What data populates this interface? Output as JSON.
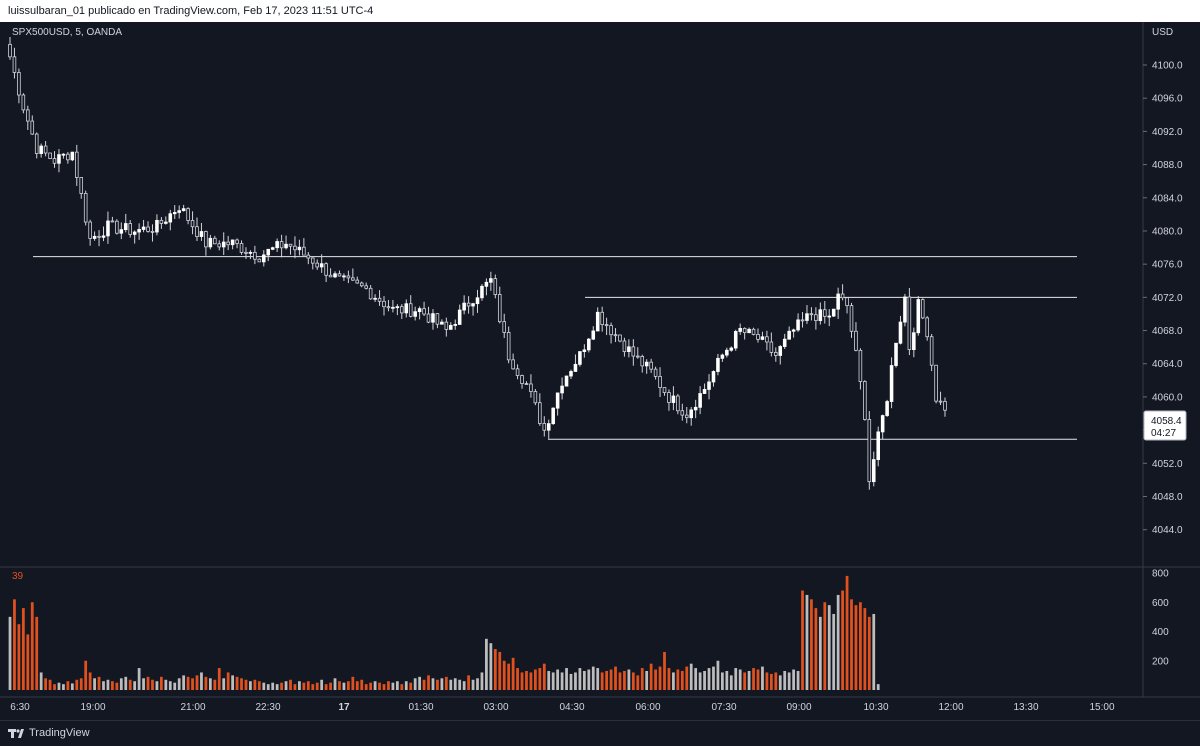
{
  "header": {
    "text": "luissulbaran_01 publicado en TradingView.com, Feb 17, 2023 11:51 UTC-4"
  },
  "legend": {
    "symbol": "SPX500USD, 5, OANDA"
  },
  "currency_label": "USD",
  "volume_label": "39",
  "price_tag": {
    "price": "4058.4",
    "countdown": "04:27"
  },
  "footer": {
    "brand": "TradingView"
  },
  "colors": {
    "background": "#131722",
    "up": "#bdbdbd",
    "down": "#e0511e",
    "line": "#d1d4dc"
  },
  "chart_data": {
    "type": "candlestick",
    "symbol": "SPX500USD",
    "interval": "5",
    "source": "OANDA",
    "price_axis": {
      "ticks": [
        4100.0,
        4096.0,
        4092.0,
        4088.0,
        4084.0,
        4080.0,
        4076.0,
        4072.0,
        4068.0,
        4064.0,
        4060.0,
        4056.0,
        4052.0,
        4048.0,
        4044.0
      ],
      "range": [
        4041.0,
        4104.0
      ]
    },
    "time_axis": {
      "ticks": [
        "6:30",
        "19:00",
        "21:00",
        "22:30",
        "17",
        "01:30",
        "03:00",
        "04:30",
        "06:00",
        "07:30",
        "09:00",
        "10:30",
        "12:00",
        "13:30",
        "15:00"
      ]
    },
    "volume_axis": {
      "ticks": [
        800,
        600,
        400,
        200
      ],
      "range": [
        0,
        850
      ]
    },
    "horizontal_levels": [
      {
        "price": 4076.9
      },
      {
        "price": 4072.0
      },
      {
        "price": 4054.9
      }
    ],
    "last_price": 4058.4,
    "anchors": [
      [
        0,
        4101.0
      ],
      [
        3,
        4095.0
      ],
      [
        6,
        4090.0
      ],
      [
        10,
        4088.5
      ],
      [
        14,
        4089.5
      ],
      [
        18,
        4079.0
      ],
      [
        22,
        4080.5
      ],
      [
        28,
        4080.0
      ],
      [
        33,
        4080.5
      ],
      [
        38,
        4083.0
      ],
      [
        44,
        4078.5
      ],
      [
        50,
        4078.5
      ],
      [
        56,
        4077.0
      ],
      [
        62,
        4078.5
      ],
      [
        68,
        4076.5
      ],
      [
        74,
        4074.0
      ],
      [
        80,
        4073.0
      ],
      [
        86,
        4070.5
      ],
      [
        92,
        4070.5
      ],
      [
        98,
        4068.0
      ],
      [
        104,
        4072.0
      ],
      [
        108,
        4074.0
      ],
      [
        112,
        4065.0
      ],
      [
        116,
        4061.5
      ],
      [
        120,
        4056.0
      ],
      [
        124,
        4062.0
      ],
      [
        128,
        4065.0
      ],
      [
        132,
        4070.0
      ],
      [
        136,
        4067.5
      ],
      [
        140,
        4065.0
      ],
      [
        144,
        4063.0
      ],
      [
        148,
        4060.0
      ],
      [
        152,
        4058.0
      ],
      [
        156,
        4061.0
      ],
      [
        160,
        4065.0
      ],
      [
        164,
        4068.0
      ],
      [
        168,
        4067.0
      ],
      [
        172,
        4065.0
      ],
      [
        176,
        4068.0
      ],
      [
        180,
        4070.0
      ],
      [
        184,
        4069.5
      ],
      [
        186,
        4072.0
      ],
      [
        188,
        4071.0
      ],
      [
        190,
        4065.0
      ],
      [
        192,
        4058.0
      ],
      [
        193,
        4050.0
      ],
      [
        195,
        4055.0
      ],
      [
        197,
        4060.0
      ],
      [
        199,
        4067.0
      ],
      [
        201,
        4072.0
      ],
      [
        202,
        4066.0
      ],
      [
        204,
        4071.0
      ],
      [
        206,
        4068.0
      ],
      [
        208,
        4060.0
      ],
      [
        210,
        4058.4
      ]
    ],
    "volume": [
      500,
      620,
      450,
      560,
      380,
      600,
      500,
      120,
      80,
      70,
      40,
      50,
      40,
      60,
      45,
      70,
      80,
      200,
      120,
      80,
      90,
      60,
      70,
      60,
      50,
      80,
      90,
      70,
      60,
      150,
      80,
      90,
      70,
      60,
      90,
      70,
      60,
      50,
      80,
      100,
      90,
      80,
      100,
      120,
      90,
      80,
      70,
      150,
      80,
      120,
      100,
      90,
      80,
      70,
      60,
      70,
      60,
      50,
      40,
      50,
      40,
      50,
      60,
      70,
      40,
      60,
      50,
      60,
      40,
      50,
      70,
      40,
      50,
      80,
      60,
      50,
      60,
      90,
      60,
      70,
      40,
      50,
      60,
      50,
      40,
      60,
      50,
      60,
      40,
      60,
      50,
      80,
      90,
      70,
      100,
      80,
      70,
      80,
      90,
      70,
      80,
      70,
      60,
      100,
      70,
      80,
      120,
      350,
      320,
      280,
      260,
      200,
      180,
      220,
      150,
      120,
      130,
      120,
      140,
      150,
      180,
      130,
      120,
      140,
      120,
      150,
      110,
      120,
      150,
      130,
      140,
      160,
      150,
      120,
      130,
      140,
      160,
      120,
      130,
      140,
      120,
      100,
      150,
      130,
      180,
      140,
      160,
      260,
      150,
      120,
      140,
      130,
      160,
      180,
      150,
      120,
      130,
      150,
      160,
      200,
      120,
      130,
      100,
      150,
      140,
      120,
      130,
      150,
      140,
      160,
      120,
      110,
      120,
      100,
      130,
      120,
      140,
      130,
      680,
      650,
      620,
      560,
      500,
      600,
      580,
      520,
      650,
      680,
      780,
      620,
      580,
      600,
      560,
      500,
      520,
      40
    ]
  }
}
